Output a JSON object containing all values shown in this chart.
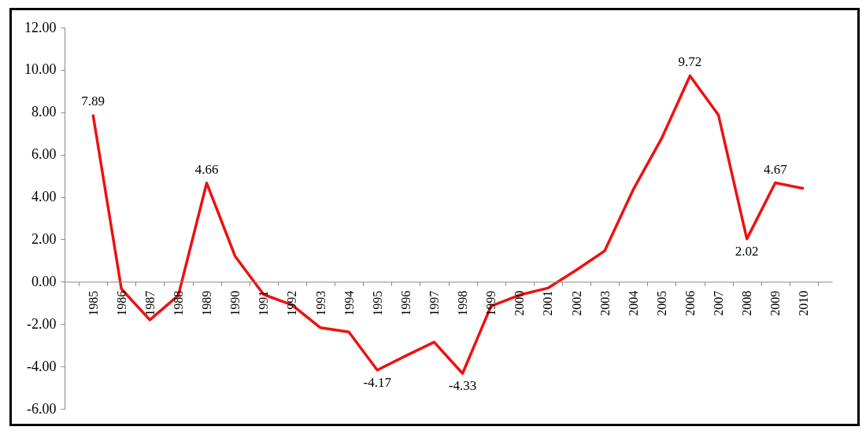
{
  "chart_data": {
    "type": "line",
    "categories": [
      "1985",
      "1986",
      "1987",
      "1988",
      "1989",
      "1990",
      "1991",
      "1992",
      "1993",
      "1994",
      "1995",
      "1996",
      "1997",
      "1998",
      "1999",
      "2000",
      "2001",
      "2002",
      "2003",
      "2004",
      "2005",
      "2006",
      "2007",
      "2008",
      "2009",
      "2010"
    ],
    "series": [
      {
        "color": "#ee1111",
        "values": [
          7.89,
          -0.34,
          -1.8,
          -0.65,
          4.66,
          1.2,
          -0.6,
          -1.1,
          -2.17,
          -2.37,
          -4.17,
          -3.5,
          -2.85,
          -4.33,
          -1.15,
          -0.63,
          -0.3,
          0.55,
          1.46,
          4.34,
          6.76,
          9.72,
          7.87,
          2.02,
          4.67,
          4.4
        ],
        "value_labels": [
          "7.89",
          null,
          null,
          null,
          "4.66",
          null,
          null,
          null,
          null,
          null,
          "-4.17",
          null,
          null,
          "-4.33",
          null,
          null,
          null,
          null,
          null,
          null,
          null,
          "9.72",
          null,
          "2.02",
          "4.67",
          null
        ]
      }
    ],
    "ylim": [
      -6,
      12
    ],
    "yticks": [
      {
        "value": -6,
        "label": "-6.00"
      },
      {
        "value": -4,
        "label": "-4.00"
      },
      {
        "value": -2,
        "label": "-2.00"
      },
      {
        "value": 0,
        "label": "0.00"
      },
      {
        "value": 2,
        "label": "2.00"
      },
      {
        "value": 4,
        "label": "4.00"
      },
      {
        "value": 6,
        "label": "6.00"
      },
      {
        "value": 8,
        "label": "8.00"
      },
      {
        "value": 10,
        "label": "10.00"
      },
      {
        "value": 12,
        "label": "12.00"
      }
    ],
    "grid": false,
    "marker": "none",
    "line_style": "solid"
  }
}
